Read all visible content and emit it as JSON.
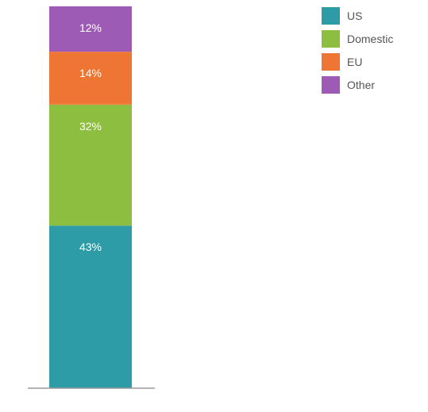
{
  "chart_data": {
    "type": "bar",
    "stacked": true,
    "categories": [
      ""
    ],
    "series": [
      {
        "name": "US",
        "values": [
          43
        ],
        "label": "43%",
        "color": "#2E9CA6"
      },
      {
        "name": "Domestic",
        "values": [
          32
        ],
        "label": "32%",
        "color": "#8DBE3F"
      },
      {
        "name": "EU",
        "values": [
          14
        ],
        "label": "14%",
        "color": "#EE7533"
      },
      {
        "name": "Other",
        "values": [
          12
        ],
        "label": "12%",
        "color": "#9D5BB5"
      }
    ],
    "title": "",
    "xlabel": "",
    "ylabel": "",
    "ylim": [
      0,
      101
    ],
    "grid": false,
    "legend_position": "top-right"
  }
}
